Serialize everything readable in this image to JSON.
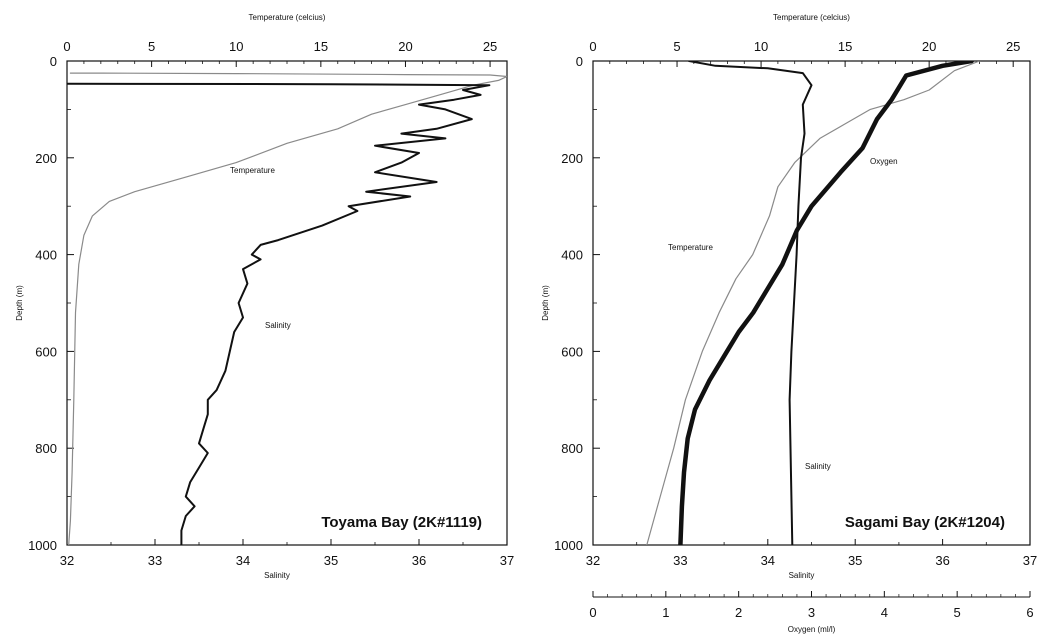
{
  "chart_data": [
    {
      "type": "line",
      "title": "Toyama Bay (2K#1119)",
      "top_axis": {
        "label": "Temperature (celcius)",
        "range": [
          0,
          26
        ],
        "ticks": [
          0,
          5,
          10,
          15,
          20,
          25
        ]
      },
      "bottom_axis": {
        "label": "Salinity",
        "range": [
          32,
          37
        ],
        "ticks": [
          32,
          33,
          34,
          35,
          36,
          37
        ]
      },
      "left_axis": {
        "label": "Depth (m)",
        "range": [
          0,
          1000
        ],
        "inverted": true,
        "ticks": [
          0,
          200,
          400,
          600,
          800,
          1000
        ]
      },
      "grid": false,
      "series": [
        {
          "name": "Temperature",
          "axis": "top",
          "points": [
            [
              0.2,
              25
            ],
            [
              2,
              25
            ],
            [
              10,
              26
            ],
            [
              20,
              28
            ],
            [
              25,
              29
            ],
            [
              26,
              32
            ],
            [
              25.5,
              40
            ],
            [
              24,
              50
            ],
            [
              22,
              70
            ],
            [
              20,
              90
            ],
            [
              18,
              110
            ],
            [
              16,
              140
            ],
            [
              13,
              170
            ],
            [
              10,
              210
            ],
            [
              7,
              240
            ],
            [
              4,
              270
            ],
            [
              2.5,
              290
            ],
            [
              1.5,
              320
            ],
            [
              1,
              360
            ],
            [
              0.7,
              420
            ],
            [
              0.5,
              520
            ],
            [
              0.4,
              700
            ],
            [
              0.3,
              850
            ],
            [
              0.2,
              950
            ],
            [
              0.1,
              1000
            ]
          ]
        },
        {
          "name": "Salinity",
          "axis": "bottom",
          "points": [
            [
              32,
              47
            ],
            [
              35,
              48
            ],
            [
              36.8,
              50
            ],
            [
              36.5,
              60
            ],
            [
              36.7,
              70
            ],
            [
              36.4,
              80
            ],
            [
              36,
              90
            ],
            [
              36.3,
              100
            ],
            [
              36.6,
              120
            ],
            [
              36.2,
              140
            ],
            [
              35.8,
              150
            ],
            [
              36.3,
              160
            ],
            [
              35.5,
              175
            ],
            [
              36,
              190
            ],
            [
              35.8,
              210
            ],
            [
              35.5,
              230
            ],
            [
              36.2,
              250
            ],
            [
              35.4,
              270
            ],
            [
              35.9,
              280
            ],
            [
              35.2,
              300
            ],
            [
              35.3,
              310
            ],
            [
              34.9,
              340
            ],
            [
              34.4,
              370
            ],
            [
              34.2,
              380
            ],
            [
              34.1,
              400
            ],
            [
              34.2,
              410
            ],
            [
              34,
              430
            ],
            [
              34.05,
              460
            ],
            [
              33.95,
              500
            ],
            [
              34,
              530
            ],
            [
              33.9,
              560
            ],
            [
              33.85,
              600
            ],
            [
              33.8,
              640
            ],
            [
              33.7,
              680
            ],
            [
              33.6,
              700
            ],
            [
              33.6,
              730
            ],
            [
              33.55,
              760
            ],
            [
              33.5,
              790
            ],
            [
              33.6,
              810
            ],
            [
              33.5,
              840
            ],
            [
              33.4,
              870
            ],
            [
              33.35,
              900
            ],
            [
              33.45,
              920
            ],
            [
              33.35,
              940
            ],
            [
              33.3,
              970
            ],
            [
              33.3,
              1000
            ]
          ]
        }
      ]
    },
    {
      "type": "line",
      "title": "Sagami Bay (2K#1204)",
      "top_axis": {
        "label": "Temperature (celcius)",
        "range": [
          0,
          26
        ],
        "ticks": [
          0,
          5,
          10,
          15,
          20,
          25
        ]
      },
      "bottom_axis": {
        "label": "Salinity",
        "range": [
          32,
          37
        ],
        "ticks": [
          32,
          33,
          34,
          35,
          36,
          37
        ]
      },
      "extra_axis": {
        "label": "Oxygen (ml/l)",
        "range": [
          0,
          6
        ],
        "ticks": [
          0,
          1,
          2,
          3,
          4,
          5,
          6
        ]
      },
      "left_axis": {
        "label": "Depth (m)",
        "range": [
          0,
          1000
        ],
        "inverted": true,
        "ticks": [
          0,
          200,
          400,
          600,
          800,
          1000
        ]
      },
      "grid": false,
      "series": [
        {
          "name": "Temperature",
          "axis": "top",
          "points": [
            [
              23,
              0
            ],
            [
              21.5,
              20
            ],
            [
              20,
              60
            ],
            [
              18.5,
              80
            ],
            [
              16.5,
              100
            ],
            [
              15,
              130
            ],
            [
              13.5,
              160
            ],
            [
              12,
              210
            ],
            [
              11,
              260
            ],
            [
              10.5,
              320
            ],
            [
              10,
              360
            ],
            [
              9.5,
              400
            ],
            [
              8.5,
              450
            ],
            [
              7.5,
              520
            ],
            [
              6.5,
              600
            ],
            [
              5.5,
              700
            ],
            [
              4.8,
              800
            ],
            [
              4,
              900
            ],
            [
              3.2,
              1000
            ]
          ]
        },
        {
          "name": "Salinity",
          "axis": "bottom",
          "points": [
            [
              33.1,
              0
            ],
            [
              33.4,
              10
            ],
            [
              34,
              15
            ],
            [
              34.4,
              25
            ],
            [
              34.5,
              50
            ],
            [
              34.4,
              90
            ],
            [
              34.42,
              150
            ],
            [
              34.38,
              200
            ],
            [
              34.35,
              300
            ],
            [
              34.33,
              400
            ],
            [
              34.3,
              500
            ],
            [
              34.27,
              600
            ],
            [
              34.25,
              700
            ],
            [
              34.26,
              800
            ],
            [
              34.27,
              900
            ],
            [
              34.28,
              1000
            ]
          ]
        },
        {
          "name": "Oxygen",
          "axis": "extra",
          "points": [
            [
              5.2,
              0
            ],
            [
              4.8,
              10
            ],
            [
              4.3,
              30
            ],
            [
              4.1,
              80
            ],
            [
              3.9,
              120
            ],
            [
              3.7,
              180
            ],
            [
              3.4,
              230
            ],
            [
              3,
              300
            ],
            [
              2.8,
              350
            ],
            [
              2.6,
              420
            ],
            [
              2.4,
              470
            ],
            [
              2.2,
              520
            ],
            [
              2,
              560
            ],
            [
              1.8,
              610
            ],
            [
              1.6,
              660
            ],
            [
              1.4,
              720
            ],
            [
              1.3,
              780
            ],
            [
              1.25,
              850
            ],
            [
              1.22,
              920
            ],
            [
              1.2,
              1000
            ]
          ]
        }
      ]
    }
  ]
}
